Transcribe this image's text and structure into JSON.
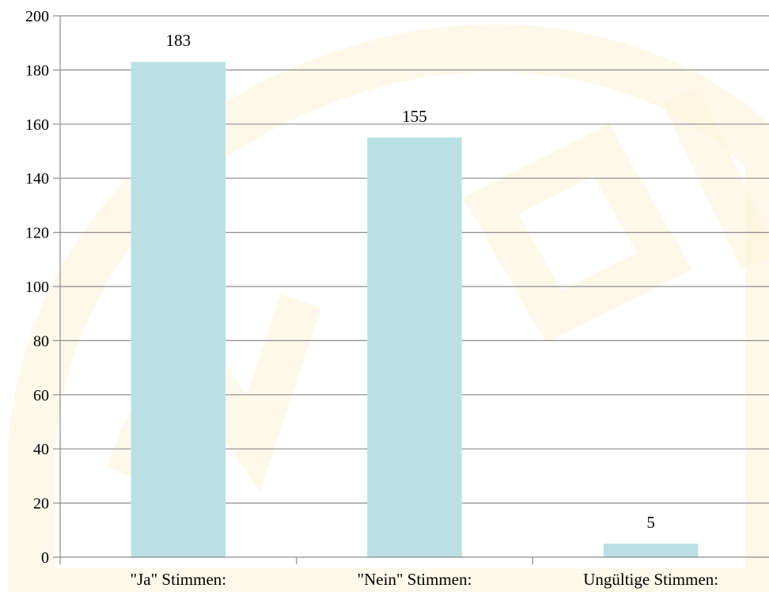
{
  "chart_data": {
    "type": "bar",
    "categories": [
      "\"Ja\" Stimmen:",
      "\"Nein\" Stimmen:",
      "Ungültige Stimmen:"
    ],
    "values": [
      183,
      155,
      5
    ],
    "data_labels": [
      "183",
      "155",
      "5"
    ],
    "title": "",
    "xlabel": "",
    "ylabel": "",
    "ylim": [
      0,
      200
    ],
    "yticks": [
      0,
      20,
      40,
      60,
      80,
      100,
      120,
      140,
      160,
      180,
      200
    ],
    "grid": true,
    "legend": "none",
    "colors": {
      "bar": "#bae0e3",
      "grid": "#8c8c8c",
      "watermark": "#fdf1d6"
    }
  }
}
